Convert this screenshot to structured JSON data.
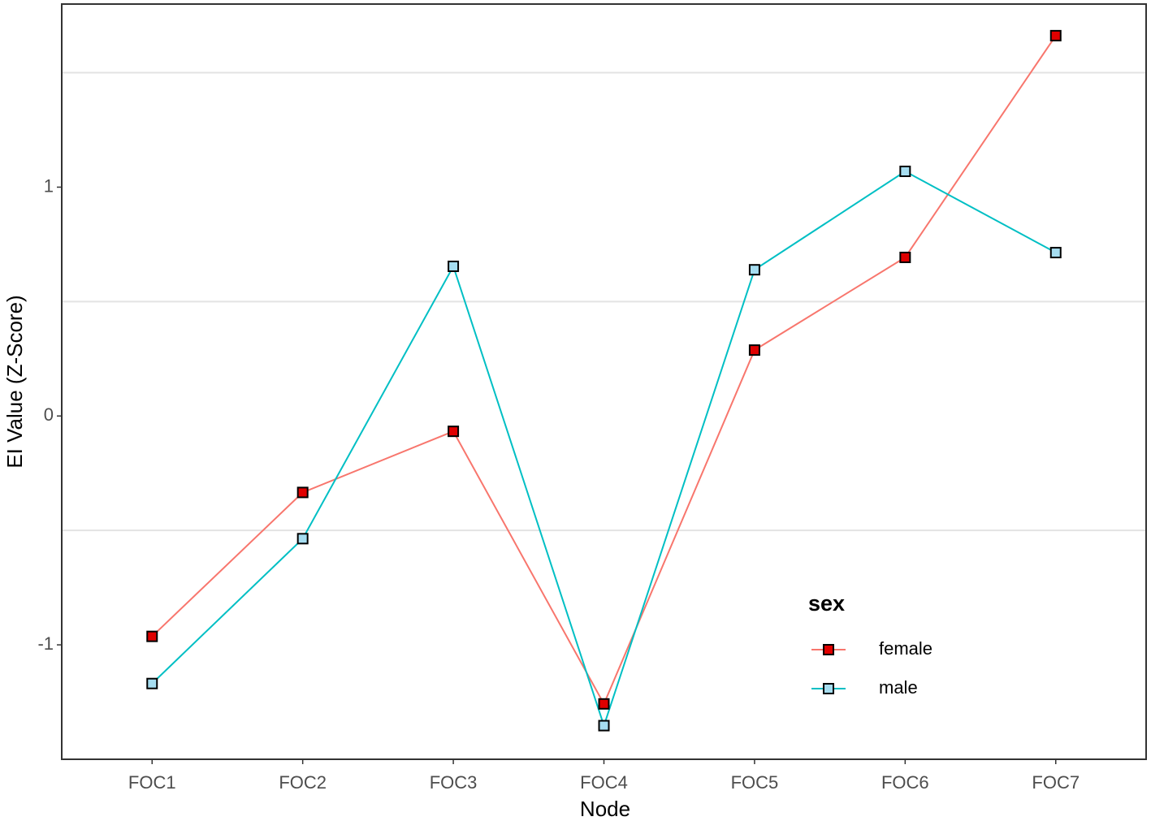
{
  "chart_data": {
    "type": "line",
    "x_label": "Node",
    "y_label": "EI Value (Z-Score)",
    "categories": [
      "FOC1",
      "FOC2",
      "FOC3",
      "FOC4",
      "FOC5",
      "FOC6",
      "FOC7"
    ],
    "series": [
      {
        "name": "female",
        "color": "#F8766D",
        "marker_fill": "#E00000",
        "values": [
          -0.963,
          -0.334,
          -0.067,
          -1.258,
          0.288,
          0.693,
          1.662
        ]
      },
      {
        "name": "male",
        "color": "#00BFC4",
        "marker_fill": "#A6DDF0",
        "values": [
          -1.169,
          -0.536,
          0.654,
          -1.353,
          0.639,
          1.069,
          0.714
        ]
      }
    ],
    "ylim": [
      -1.5,
      1.8
    ],
    "yticks": [
      -1,
      0,
      1
    ],
    "minor_grid": [
      -0.5,
      0.5,
      1.5
    ],
    "legend_title": "sex",
    "legend_position": "bottom-right"
  }
}
